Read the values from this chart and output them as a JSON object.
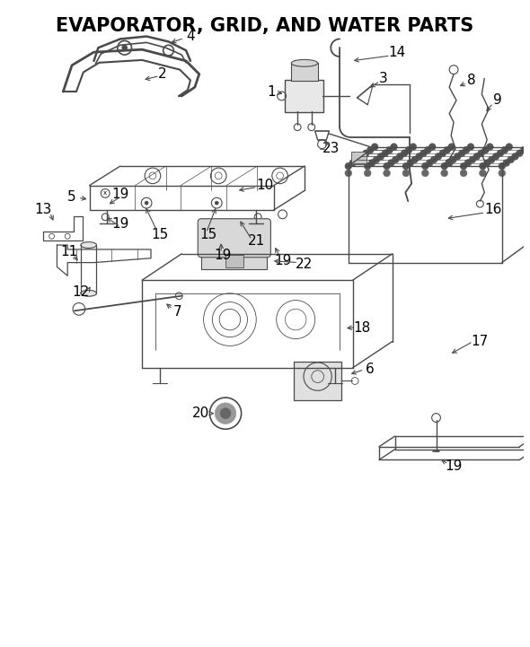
{
  "title": "EVAPORATOR, GRID, AND WATER PARTS",
  "title_fontsize": 15,
  "background_color": "#ffffff",
  "line_color": "#4a4a4a",
  "fig_width": 5.9,
  "fig_height": 7.21,
  "dpi": 100
}
